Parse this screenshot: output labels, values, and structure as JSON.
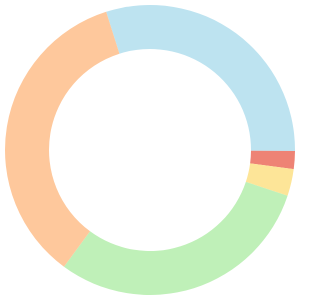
{
  "chart_data": {
    "type": "donut",
    "values": [
      30,
      2,
      3,
      30,
      35
    ],
    "colors": [
      "#bde3f0",
      "#ee8375",
      "#fde598",
      "#bff0b8",
      "#fec89c"
    ]
  }
}
